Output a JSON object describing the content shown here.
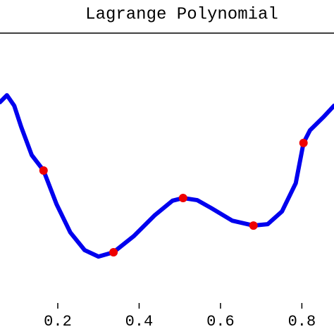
{
  "chart_data": {
    "type": "line",
    "title": "Lagrange Polynomial",
    "xlim": [
      0.058,
      0.879
    ],
    "ylim": [
      0,
      1
    ],
    "xticks": [
      {
        "value": 0.2,
        "label": "0.2"
      },
      {
        "value": 0.4,
        "label": "0.4"
      },
      {
        "value": 0.6,
        "label": "0.6"
      },
      {
        "value": 0.8,
        "label": "0.8"
      }
    ],
    "series": [
      {
        "color": "#0000ee",
        "marker": false,
        "x": [
          0.058,
          0.075,
          0.093,
          0.11,
          0.136,
          0.165,
          0.197,
          0.231,
          0.266,
          0.3,
          0.337,
          0.387,
          0.439,
          0.482,
          0.508,
          0.543,
          0.577,
          0.629,
          0.681,
          0.716,
          0.751,
          0.785,
          0.804,
          0.82,
          0.855,
          0.879
        ],
        "values": [
          0.744,
          0.77,
          0.731,
          0.653,
          0.548,
          0.491,
          0.366,
          0.261,
          0.196,
          0.172,
          0.188,
          0.248,
          0.326,
          0.379,
          0.389,
          0.381,
          0.352,
          0.305,
          0.287,
          0.292,
          0.339,
          0.444,
          0.593,
          0.64,
          0.692,
          0.731
        ]
      },
      {
        "color": "#ee0000",
        "marker": true,
        "x": [
          0.165,
          0.337,
          0.508,
          0.681,
          0.804
        ],
        "values": [
          0.491,
          0.188,
          0.389,
          0.287,
          0.593
        ]
      }
    ]
  }
}
